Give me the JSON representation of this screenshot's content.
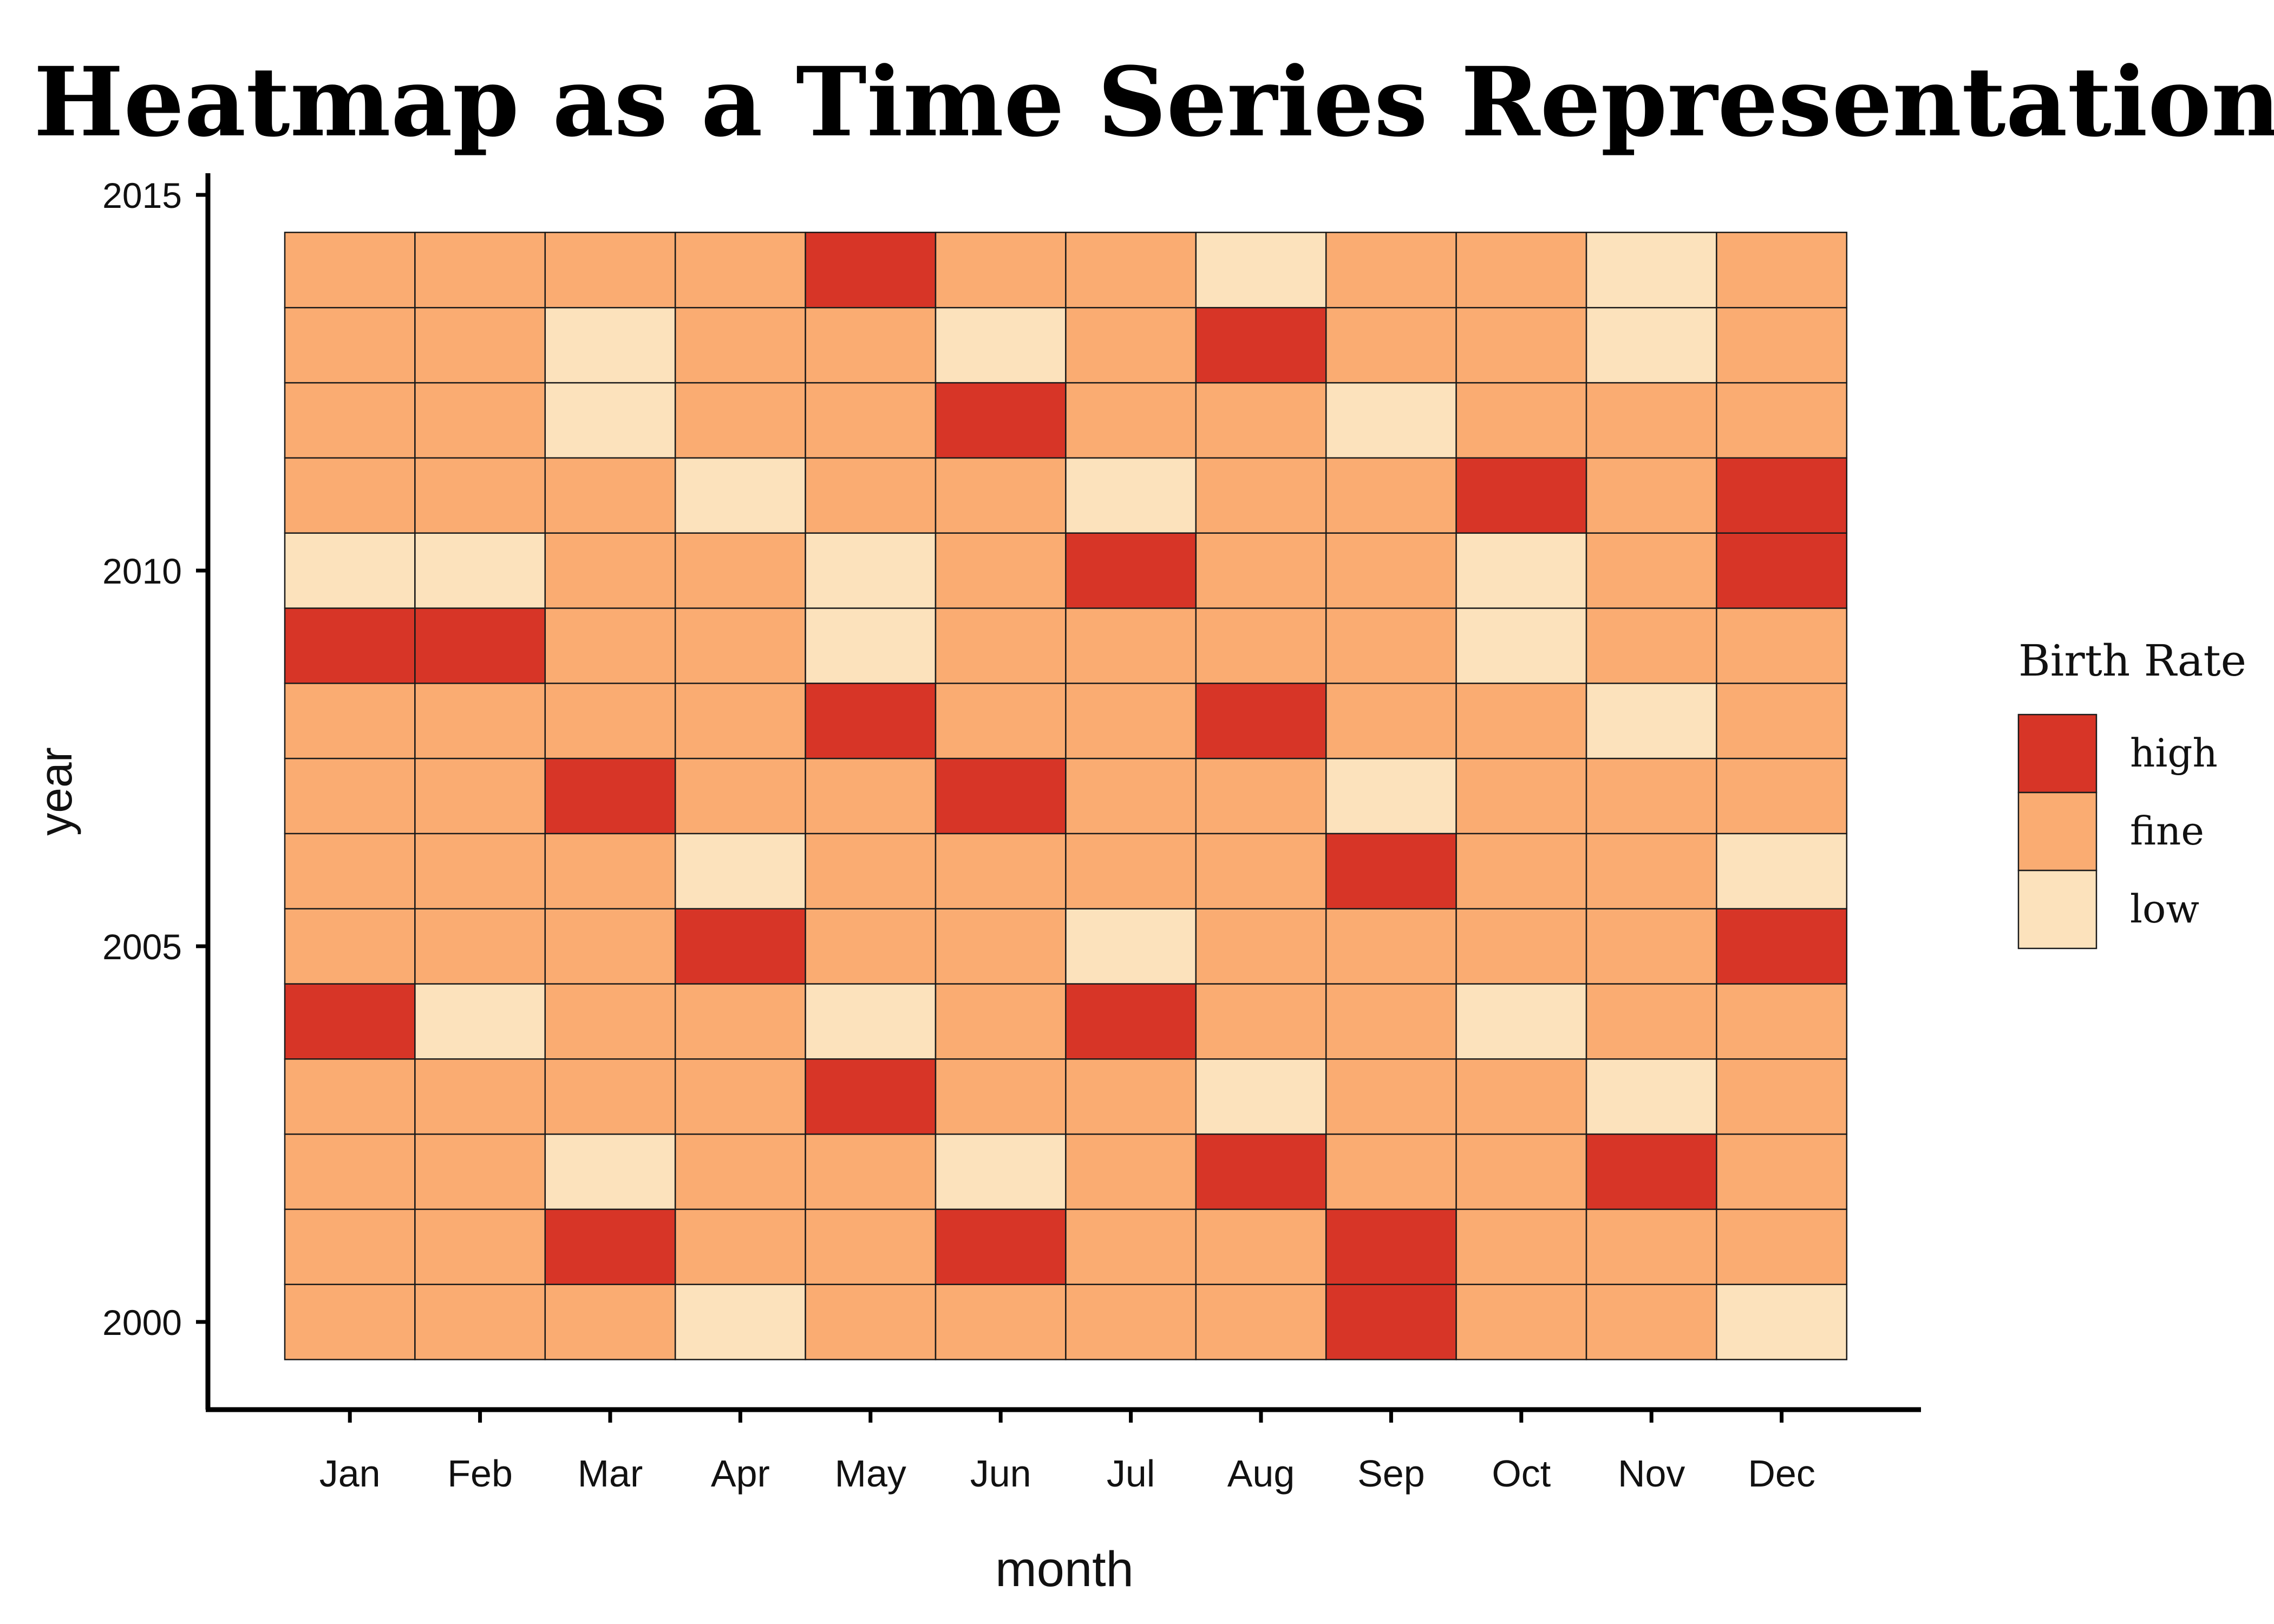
{
  "chart_data": {
    "type": "heatmap",
    "title": "Heatmap as a Time Series Representation",
    "xlabel": "month",
    "ylabel": "year",
    "months": [
      "Jan",
      "Feb",
      "Mar",
      "Apr",
      "May",
      "Jun",
      "Jul",
      "Aug",
      "Sep",
      "Oct",
      "Nov",
      "Dec"
    ],
    "years": [
      2000,
      2001,
      2002,
      2003,
      2004,
      2005,
      2006,
      2007,
      2008,
      2009,
      2010,
      2011,
      2012,
      2013,
      2014
    ],
    "y_ticks": [
      2000,
      2005,
      2010,
      2015
    ],
    "ylim": [
      1998.5,
      2015.1
    ],
    "legend": {
      "title": "Birth Rate",
      "position": "right",
      "entries": [
        {
          "label": "high",
          "color": "#D73527"
        },
        {
          "label": "fine",
          "color": "#FAAC72"
        },
        {
          "label": "low",
          "color": "#FCE2BC"
        }
      ]
    },
    "values": {
      "2000": [
        "fine",
        "fine",
        "fine",
        "low",
        "fine",
        "fine",
        "fine",
        "fine",
        "high",
        "fine",
        "fine",
        "low"
      ],
      "2001": [
        "fine",
        "fine",
        "high",
        "fine",
        "fine",
        "high",
        "fine",
        "fine",
        "high",
        "fine",
        "fine",
        "fine"
      ],
      "2002": [
        "fine",
        "fine",
        "low",
        "fine",
        "fine",
        "low",
        "fine",
        "high",
        "fine",
        "fine",
        "high",
        "fine"
      ],
      "2003": [
        "fine",
        "fine",
        "fine",
        "fine",
        "high",
        "fine",
        "fine",
        "low",
        "fine",
        "fine",
        "low",
        "fine"
      ],
      "2004": [
        "high",
        "low",
        "fine",
        "fine",
        "low",
        "fine",
        "high",
        "fine",
        "fine",
        "low",
        "fine",
        "fine"
      ],
      "2005": [
        "fine",
        "fine",
        "fine",
        "high",
        "fine",
        "fine",
        "low",
        "fine",
        "fine",
        "fine",
        "fine",
        "high"
      ],
      "2006": [
        "fine",
        "fine",
        "fine",
        "low",
        "fine",
        "fine",
        "fine",
        "fine",
        "high",
        "fine",
        "fine",
        "low"
      ],
      "2007": [
        "fine",
        "fine",
        "high",
        "fine",
        "fine",
        "high",
        "fine",
        "fine",
        "low",
        "fine",
        "fine",
        "fine"
      ],
      "2008": [
        "fine",
        "fine",
        "fine",
        "fine",
        "high",
        "fine",
        "fine",
        "high",
        "fine",
        "fine",
        "low",
        "fine"
      ],
      "2009": [
        "high",
        "high",
        "fine",
        "fine",
        "low",
        "fine",
        "fine",
        "fine",
        "fine",
        "low",
        "fine",
        "fine"
      ],
      "2010": [
        "low",
        "low",
        "fine",
        "fine",
        "low",
        "fine",
        "high",
        "fine",
        "fine",
        "low",
        "fine",
        "high"
      ],
      "2011": [
        "fine",
        "fine",
        "fine",
        "low",
        "fine",
        "fine",
        "low",
        "fine",
        "fine",
        "high",
        "fine",
        "high"
      ],
      "2012": [
        "fine",
        "fine",
        "low",
        "fine",
        "fine",
        "high",
        "fine",
        "fine",
        "low",
        "fine",
        "fine",
        "fine"
      ],
      "2013": [
        "fine",
        "fine",
        "low",
        "fine",
        "fine",
        "low",
        "fine",
        "high",
        "fine",
        "fine",
        "low",
        "fine"
      ],
      "2014": [
        "fine",
        "fine",
        "fine",
        "fine",
        "high",
        "fine",
        "fine",
        "low",
        "fine",
        "fine",
        "low",
        "fine"
      ]
    }
  }
}
